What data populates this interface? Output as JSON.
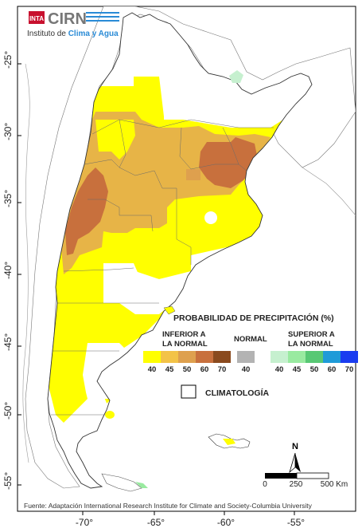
{
  "logo": {
    "org_short": "INTA",
    "name": "CIRN",
    "subtitle_pre": "Instituto de ",
    "subtitle_highlight": "Clima y Agua"
  },
  "axes": {
    "lat_labels": [
      "-25°",
      "-30°",
      "-35°",
      "-40°",
      "-45°",
      "-50°",
      "-55°"
    ],
    "lon_labels": [
      "-70°",
      "-65°",
      "-60°",
      "-55°"
    ]
  },
  "legend": {
    "title": "PROBABILIDAD DE PRECIPITACIÓN (%)",
    "below": {
      "line1": "INFERIOR A",
      "line2": "LA NORMAL",
      "values": [
        "40",
        "45",
        "50",
        "60",
        "70"
      ],
      "colors": [
        "#ffff00",
        "#f3c347",
        "#dea04e",
        "#c8703d",
        "#8a4a1e"
      ]
    },
    "normal": {
      "label": "NORMAL",
      "values": [
        "40"
      ],
      "colors": [
        "#b3b3b3"
      ]
    },
    "above": {
      "line1": "SUPERIOR A",
      "line2": "LA NORMAL",
      "values": [
        "40",
        "45",
        "50",
        "60",
        "70"
      ],
      "colors": [
        "#c6f0cf",
        "#99eaa0",
        "#58c874",
        "#1f9bd8",
        "#1a3cf0"
      ]
    },
    "climatology_label": "CLIMATOLOGÍA"
  },
  "scale": {
    "labels": [
      "0",
      "250",
      "500 Km"
    ]
  },
  "north_label": "N",
  "source": "Fuente: Adaptación International Research Institute for Climate and Society-Columbia University"
}
